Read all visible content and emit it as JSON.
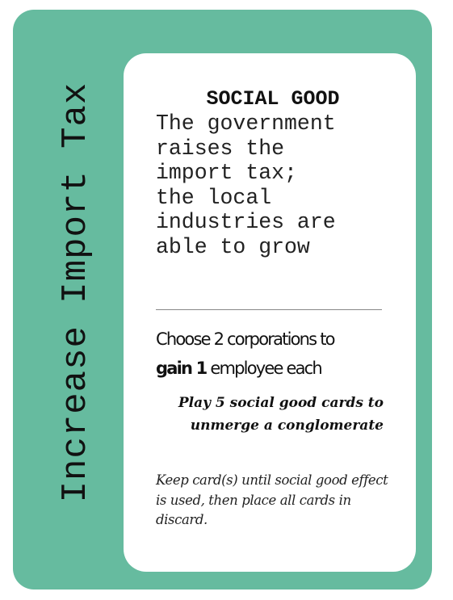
{
  "card": {
    "name": "Increase Import Tax",
    "type": "SOCIAL GOOD",
    "flavor_text": "The government\nraises the\nimport tax;\nthe local\nindustries are\nable to grow",
    "effect": {
      "line1": "Choose 2 corporations to",
      "line2_bold": "gain 1",
      "line2_rest": " employee each"
    },
    "bonus_text": "Play 5 social good cards to unmerge a conglomerate",
    "note_text": "Keep card(s) until social good effect is used, then place all cards in discard."
  },
  "colors": {
    "card_border": "#66bb9f",
    "card_face": "#ffffff",
    "text": "#111111"
  }
}
